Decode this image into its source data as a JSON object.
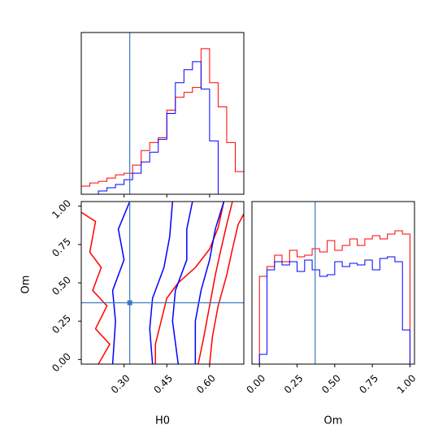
{
  "chart_data": [
    {
      "type": "histogram",
      "panel": "H0 marginal",
      "series": [
        {
          "color": "#ff0000",
          "bins": [
            [
              0.15,
              0.05
            ],
            [
              0.18,
              0.07
            ],
            [
              0.21,
              0.08
            ],
            [
              0.24,
              0.1
            ],
            [
              0.27,
              0.12
            ],
            [
              0.3,
              0.13
            ],
            [
              0.33,
              0.18
            ],
            [
              0.36,
              0.27
            ],
            [
              0.39,
              0.32
            ],
            [
              0.42,
              0.35
            ],
            [
              0.45,
              0.52
            ],
            [
              0.48,
              0.6
            ],
            [
              0.51,
              0.63
            ],
            [
              0.54,
              0.66
            ],
            [
              0.57,
              0.9
            ],
            [
              0.6,
              0.69
            ],
            [
              0.63,
              0.54
            ],
            [
              0.66,
              0.32
            ],
            [
              0.69,
              0.14
            ]
          ]
        },
        {
          "color": "#0000ff",
          "bins": [
            [
              0.21,
              0.02
            ],
            [
              0.24,
              0.04
            ],
            [
              0.27,
              0.06
            ],
            [
              0.3,
              0.09
            ],
            [
              0.33,
              0.13
            ],
            [
              0.36,
              0.2
            ],
            [
              0.39,
              0.26
            ],
            [
              0.42,
              0.34
            ],
            [
              0.45,
              0.5
            ],
            [
              0.48,
              0.69
            ],
            [
              0.51,
              0.77
            ],
            [
              0.54,
              0.82
            ],
            [
              0.57,
              0.65
            ],
            [
              0.6,
              0.33
            ]
          ]
        }
      ],
      "truth_line": 0.32
    },
    {
      "type": "contour",
      "panel": "H0 vs Om joint",
      "xlabel": "H0",
      "ylabel": "Om",
      "xlim": [
        0.15,
        0.72
      ],
      "ylim": [
        -0.03,
        1.03
      ],
      "xticks": [
        "0.30",
        "0.45",
        "0.60"
      ],
      "yticks": [
        "0.00",
        "0.25",
        "0.50",
        "0.75",
        "1.00"
      ],
      "truth_point": [
        0.32,
        0.37
      ],
      "series": [
        {
          "color": "#ff0000",
          "contours": [
            [
              [
                0.41,
                -0.03
              ],
              [
                0.41,
                0.1
              ],
              [
                0.43,
                0.25
              ],
              [
                0.45,
                0.4
              ],
              [
                0.49,
                0.5
              ],
              [
                0.55,
                0.6
              ],
              [
                0.6,
                0.72
              ],
              [
                0.63,
                0.86
              ],
              [
                0.65,
                1.03
              ]
            ],
            [
              [
                0.6,
                -0.03
              ],
              [
                0.61,
                0.15
              ],
              [
                0.63,
                0.35
              ],
              [
                0.66,
                0.55
              ],
              [
                0.68,
                0.72
              ],
              [
                0.7,
                0.88
              ],
              [
                0.72,
                0.95
              ]
            ],
            [
              [
                0.56,
                -0.03
              ],
              [
                0.58,
                0.15
              ],
              [
                0.6,
                0.35
              ],
              [
                0.62,
                0.55
              ],
              [
                0.64,
                0.72
              ],
              [
                0.66,
                0.88
              ],
              [
                0.68,
                1.03
              ]
            ],
            [
              [
                0.15,
                0.96
              ],
              [
                0.2,
                0.9
              ],
              [
                0.18,
                0.7
              ],
              [
                0.22,
                0.6
              ],
              [
                0.19,
                0.45
              ],
              [
                0.24,
                0.35
              ],
              [
                0.2,
                0.2
              ],
              [
                0.25,
                0.1
              ],
              [
                0.21,
                -0.03
              ]
            ]
          ]
        },
        {
          "color": "#0000ff",
          "contours": [
            [
              [
                0.26,
                -0.03
              ],
              [
                0.27,
                0.25
              ],
              [
                0.26,
                0.45
              ],
              [
                0.3,
                0.65
              ],
              [
                0.28,
                0.85
              ],
              [
                0.32,
                1.03
              ]
            ],
            [
              [
                0.49,
                -0.03
              ],
              [
                0.47,
                0.25
              ],
              [
                0.48,
                0.45
              ],
              [
                0.52,
                0.65
              ],
              [
                0.52,
                0.85
              ],
              [
                0.54,
                1.03
              ]
            ],
            [
              [
                0.55,
                -0.03
              ],
              [
                0.55,
                0.25
              ],
              [
                0.57,
                0.45
              ],
              [
                0.6,
                0.65
              ],
              [
                0.62,
                0.85
              ],
              [
                0.65,
                1.03
              ]
            ],
            [
              [
                0.4,
                -0.03
              ],
              [
                0.39,
                0.2
              ],
              [
                0.4,
                0.4
              ],
              [
                0.44,
                0.6
              ],
              [
                0.46,
                0.8
              ],
              [
                0.47,
                1.03
              ]
            ]
          ]
        }
      ]
    },
    {
      "type": "histogram",
      "panel": "Om marginal",
      "xlabel": "Om",
      "xlim": [
        -0.05,
        1.03
      ],
      "xticks": [
        "0.00",
        "0.25",
        "0.50",
        "0.75",
        "1.00"
      ],
      "series": [
        {
          "color": "#ff0000",
          "bins": [
            [
              0.0,
              0.54
            ],
            [
              0.05,
              0.6
            ],
            [
              0.1,
              0.67
            ],
            [
              0.15,
              0.63
            ],
            [
              0.2,
              0.7
            ],
            [
              0.25,
              0.66
            ],
            [
              0.3,
              0.67
            ],
            [
              0.35,
              0.71
            ],
            [
              0.4,
              0.69
            ],
            [
              0.45,
              0.76
            ],
            [
              0.5,
              0.7
            ],
            [
              0.55,
              0.73
            ],
            [
              0.6,
              0.77
            ],
            [
              0.65,
              0.73
            ],
            [
              0.7,
              0.77
            ],
            [
              0.75,
              0.79
            ],
            [
              0.8,
              0.77
            ],
            [
              0.85,
              0.8
            ],
            [
              0.9,
              0.82
            ],
            [
              0.95,
              0.8
            ]
          ]
        },
        {
          "color": "#0000ff",
          "bins": [
            [
              0.0,
              0.06
            ],
            [
              0.05,
              0.58
            ],
            [
              0.1,
              0.63
            ],
            [
              0.15,
              0.61
            ],
            [
              0.2,
              0.63
            ],
            [
              0.25,
              0.57
            ],
            [
              0.3,
              0.64
            ],
            [
              0.35,
              0.58
            ],
            [
              0.4,
              0.54
            ],
            [
              0.45,
              0.55
            ],
            [
              0.5,
              0.63
            ],
            [
              0.55,
              0.6
            ],
            [
              0.6,
              0.62
            ],
            [
              0.65,
              0.61
            ],
            [
              0.7,
              0.64
            ],
            [
              0.75,
              0.58
            ],
            [
              0.8,
              0.65
            ],
            [
              0.85,
              0.66
            ],
            [
              0.9,
              0.63
            ],
            [
              0.95,
              0.21
            ]
          ]
        }
      ],
      "truth_line": 0.37
    }
  ]
}
